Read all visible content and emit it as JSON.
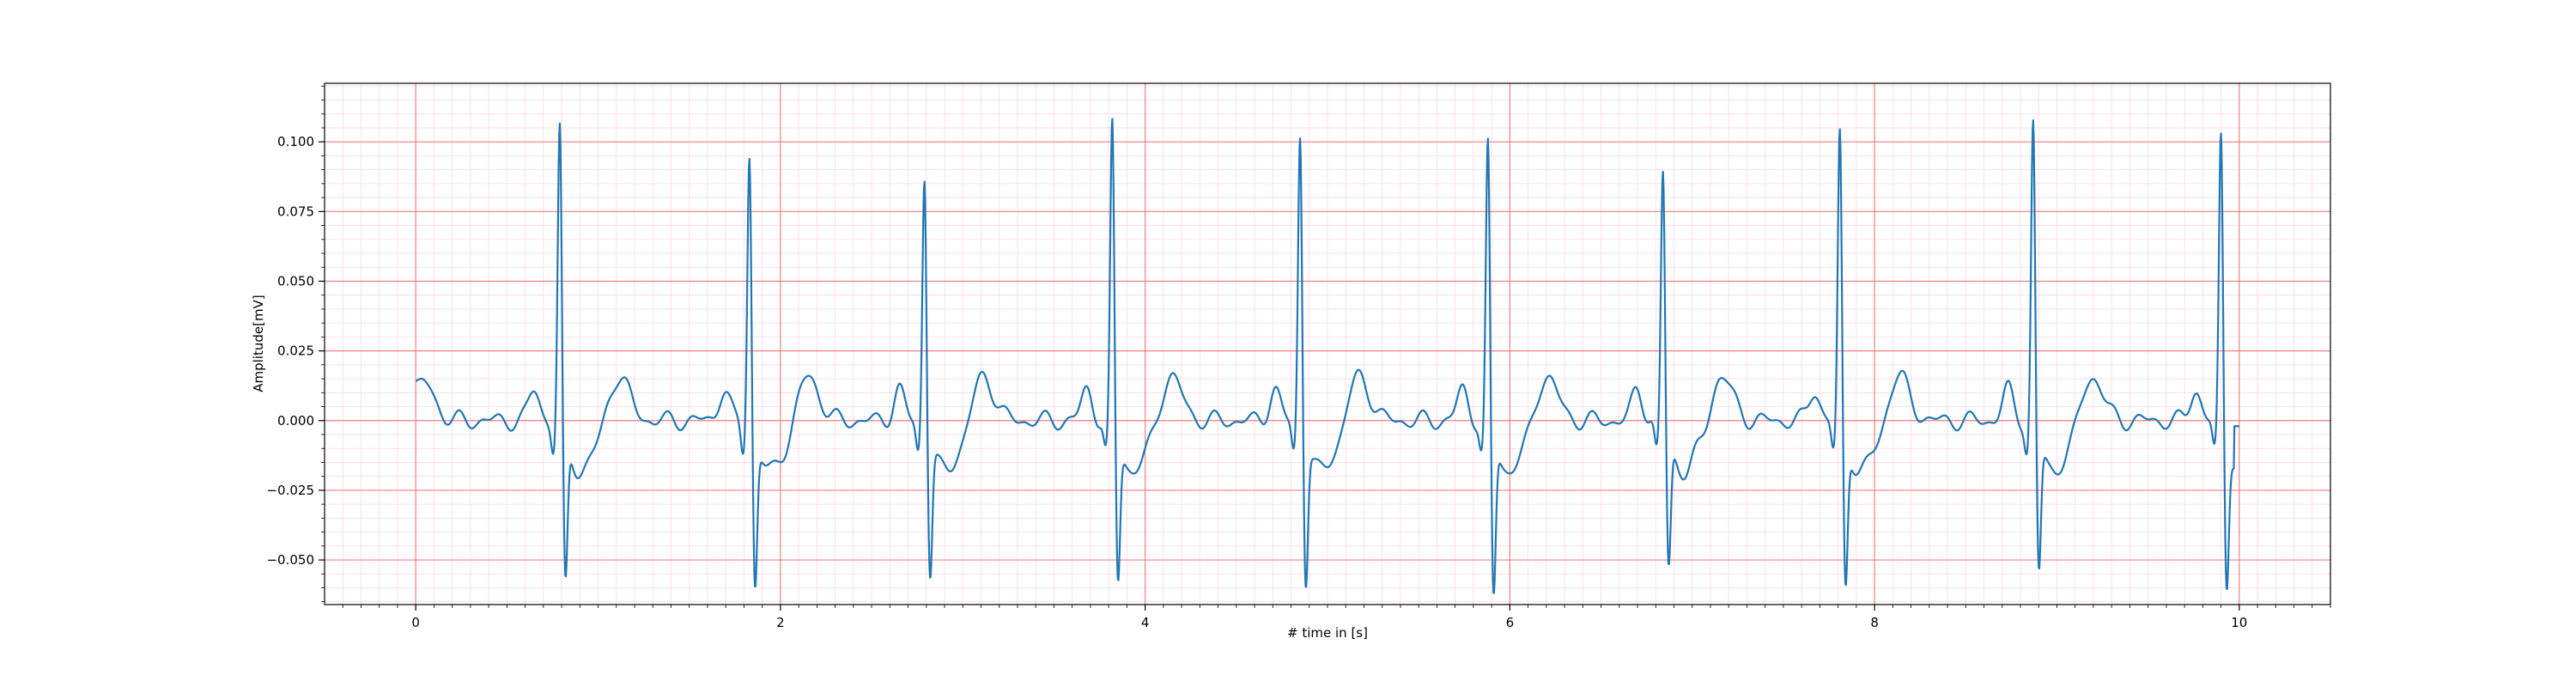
{
  "chart_data": {
    "type": "line",
    "xlabel": "# time in [s]",
    "ylabel": "Amplitude[mV]",
    "xlim": [
      -0.5,
      10.5
    ],
    "ylim": [
      -0.066,
      0.121
    ],
    "x_ticks": [
      0,
      2,
      4,
      6,
      8,
      10
    ],
    "x_tick_labels": [
      "0",
      "2",
      "4",
      "6",
      "8",
      "10"
    ],
    "y_ticks": [
      -0.05,
      -0.025,
      0.0,
      0.025,
      0.05,
      0.075,
      0.1
    ],
    "y_tick_labels": [
      "−0.050",
      "−0.025",
      "0.000",
      "0.025",
      "0.050",
      "0.075",
      "0.100"
    ],
    "grid": "major red, minor pink (ECG paper style)",
    "colors": {
      "series": "#1f77b4",
      "major_grid": "#f08080",
      "minor_grid": "#fbd5e6",
      "axes": "#000000"
    },
    "signal_start": 0.007,
    "signal_end": -0.002,
    "beats": [
      {
        "r_time": 0.79,
        "r_peak": 0.11,
        "s_trough": -0.054
      },
      {
        "r_time": 1.83,
        "r_peak": 0.101,
        "s_trough": -0.054
      },
      {
        "r_time": 2.79,
        "r_peak": 0.093,
        "s_trough": -0.049
      },
      {
        "r_time": 3.82,
        "r_peak": 0.111,
        "s_trough": -0.052
      },
      {
        "r_time": 4.85,
        "r_peak": 0.108,
        "s_trough": -0.052
      },
      {
        "r_time": 5.88,
        "r_peak": 0.104,
        "s_trough": -0.058
      },
      {
        "r_time": 6.84,
        "r_peak": 0.094,
        "s_trough": -0.047
      },
      {
        "r_time": 7.81,
        "r_peak": 0.108,
        "s_trough": -0.054
      },
      {
        "r_time": 8.87,
        "r_peak": 0.112,
        "s_trough": -0.049
      },
      {
        "r_time": 9.9,
        "r_peak": 0.107,
        "s_trough": -0.053
      }
    ]
  }
}
